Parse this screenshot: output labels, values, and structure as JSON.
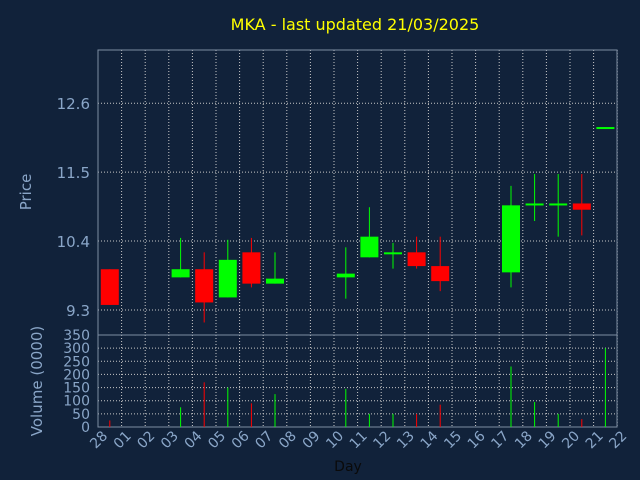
{
  "chart_data": {
    "type": "candlestick",
    "title": "MKA - last updated 21/03/2025",
    "xlabel": "Day",
    "price_axis": {
      "label": "Price",
      "ticks": [
        "9.3",
        "10.4",
        "11.5",
        "12.6"
      ],
      "ylim": [
        8.9,
        13.45
      ]
    },
    "volume_axis": {
      "label": "Volume (0000)",
      "ticks": [
        "0",
        "50",
        "100",
        "150",
        "200",
        "250",
        "300",
        "350"
      ],
      "ylim": [
        0,
        350
      ]
    },
    "x_tick_labels": [
      "28",
      "01",
      "02",
      "03",
      "04",
      "05",
      "06",
      "07",
      "08",
      "09",
      "10",
      "11",
      "12",
      "13",
      "14",
      "15",
      "16",
      "17",
      "18",
      "19",
      "20",
      "21",
      "22"
    ],
    "grid": true,
    "candles": [
      {
        "day": "28",
        "open": 9.95,
        "high": 9.95,
        "low": 9.38,
        "close": 9.38
      },
      {
        "day": "03",
        "open": 9.82,
        "high": 10.45,
        "low": 9.82,
        "close": 9.95
      },
      {
        "day": "04",
        "open": 9.95,
        "high": 10.22,
        "low": 9.1,
        "close": 9.42
      },
      {
        "day": "05",
        "open": 9.5,
        "high": 10.42,
        "low": 9.5,
        "close": 10.1
      },
      {
        "day": "06",
        "open": 10.22,
        "high": 10.45,
        "low": 9.66,
        "close": 9.72
      },
      {
        "day": "07",
        "open": 9.72,
        "high": 10.22,
        "low": 9.72,
        "close": 9.8
      },
      {
        "day": "10",
        "open": 9.82,
        "high": 10.3,
        "low": 9.48,
        "close": 9.88
      },
      {
        "day": "11",
        "open": 10.14,
        "high": 10.94,
        "low": 10.14,
        "close": 10.47
      },
      {
        "day": "12",
        "open": 10.2,
        "high": 10.37,
        "low": 9.96,
        "close": 10.22
      },
      {
        "day": "13",
        "open": 10.22,
        "high": 10.47,
        "low": 9.96,
        "close": 10.0
      },
      {
        "day": "14",
        "open": 10.0,
        "high": 10.47,
        "low": 9.6,
        "close": 9.76
      },
      {
        "day": "17",
        "open": 9.9,
        "high": 11.28,
        "low": 9.66,
        "close": 10.97
      },
      {
        "day": "18",
        "open": 10.97,
        "high": 11.47,
        "low": 10.72,
        "close": 11.0
      },
      {
        "day": "19",
        "open": 10.97,
        "high": 11.47,
        "low": 10.47,
        "close": 11.0
      },
      {
        "day": "20",
        "open": 11.0,
        "high": 11.47,
        "low": 10.49,
        "close": 10.9
      },
      {
        "day": "21",
        "open": 12.22,
        "high": 12.22,
        "low": 12.22,
        "close": 12.22
      }
    ],
    "volume": [
      {
        "day": "28",
        "value": 25
      },
      {
        "day": "03",
        "value": 75
      },
      {
        "day": "04",
        "value": 170
      },
      {
        "day": "05",
        "value": 150
      },
      {
        "day": "06",
        "value": 90
      },
      {
        "day": "07",
        "value": 125
      },
      {
        "day": "10",
        "value": 145
      },
      {
        "day": "11",
        "value": 50
      },
      {
        "day": "12",
        "value": 50
      },
      {
        "day": "13",
        "value": 50
      },
      {
        "day": "14",
        "value": 85
      },
      {
        "day": "17",
        "value": 230
      },
      {
        "day": "18",
        "value": 95
      },
      {
        "day": "19",
        "value": 50
      },
      {
        "day": "20",
        "value": 30
      },
      {
        "day": "21",
        "value": 300
      }
    ],
    "colors": {
      "up": "#00ff00",
      "down": "#ff0000",
      "background": "#11223a",
      "grid": "#c8c8c8",
      "title": "#ffff00",
      "axis_text": "#8aa6c8"
    }
  }
}
